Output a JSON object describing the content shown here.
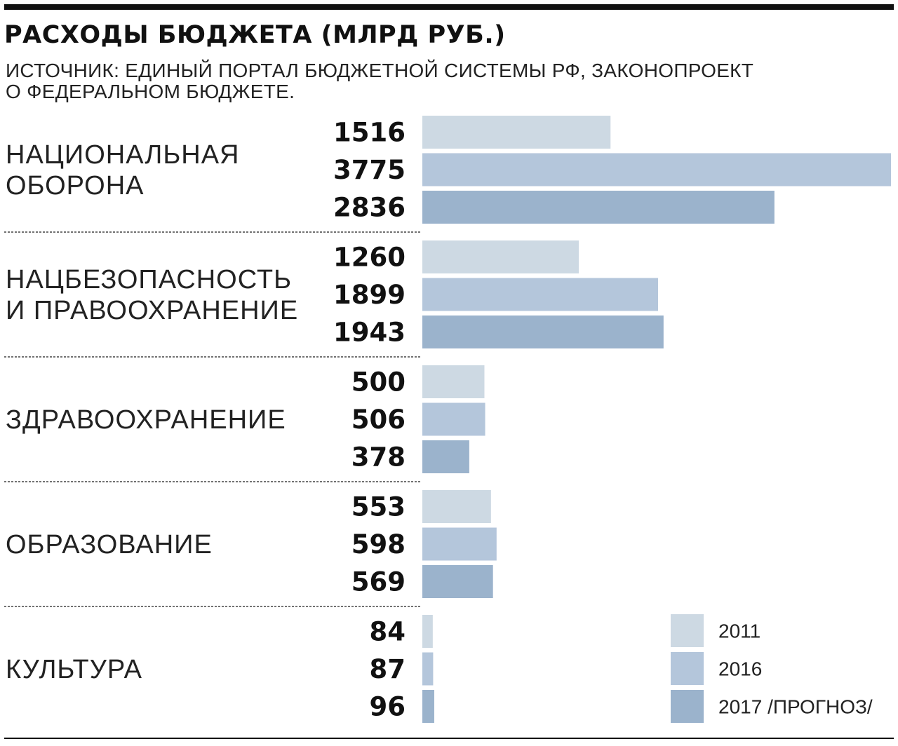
{
  "title": "РАСХОДЫ БЮДЖЕТА (МЛРД РУБ.)",
  "subtitle_lines": [
    "ИСТОЧНИК: ЕДИНЫЙ ПОРТАЛ БЮДЖЕТНОЙ СИСТЕМЫ РФ, ЗАКОНОПРОЕКТ",
    "О ФЕДЕРАЛЬНОМ БЮДЖЕТЕ."
  ],
  "colors": {
    "s2011": "#cdd9e3",
    "s2016": "#b4c6db",
    "s2017": "#9bb3cc",
    "rule": "#111111",
    "text": "#1a1a1a"
  },
  "chart_data": {
    "type": "bar",
    "orientation": "horizontal",
    "title": "РАСХОДЫ БЮДЖЕТА (МЛРД РУБ.)",
    "categories": [
      [
        "НАЦИОНАЛЬНАЯ",
        "ОБОРОНА"
      ],
      [
        "НАЦБЕЗОПАСНОСТЬ",
        "И ПРАВООХРАНЕНИЕ"
      ],
      [
        "ЗДРАВООХРАНЕНИЕ"
      ],
      [
        "ОБРАЗОВАНИЕ"
      ],
      [
        "КУЛЬТУРА"
      ]
    ],
    "series": [
      {
        "name": "2011",
        "values": [
          1516,
          1260,
          500,
          553,
          84
        ]
      },
      {
        "name": "2016",
        "values": [
          3775,
          1899,
          506,
          598,
          87
        ]
      },
      {
        "name": "2017 /ПРОГНОЗ/",
        "values": [
          2836,
          1943,
          378,
          569,
          96
        ]
      }
    ],
    "xlim": [
      0,
      3775
    ],
    "grid": false,
    "legend": "bottom-right",
    "data_labels": true
  }
}
